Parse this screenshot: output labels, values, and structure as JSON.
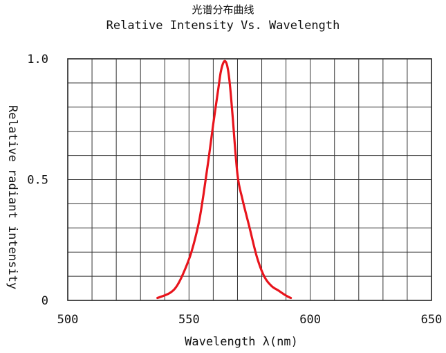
{
  "chart_data": {
    "type": "line",
    "title": "光谱分布曲线",
    "subtitle": "Relative Intensity Vs. Wavelength",
    "xlabel": "Wavelength λ(nm)",
    "ylabel": "Relative radiant intensity",
    "xlim": [
      500,
      650
    ],
    "ylim": [
      0,
      1.0
    ],
    "x_ticks": [
      "500",
      "550",
      "600",
      "650"
    ],
    "y_ticks": [
      "0",
      "0.5",
      "1.0"
    ],
    "grid": true,
    "series": [
      {
        "color": "#e8141c",
        "x": [
          537,
          542,
          545,
          548,
          551,
          554,
          556,
          558,
          560,
          562,
          563,
          564,
          565,
          566,
          567,
          568,
          570,
          572,
          575,
          578,
          581,
          584,
          587,
          590,
          592
        ],
        "y": [
          0.01,
          0.03,
          0.06,
          0.12,
          0.2,
          0.32,
          0.44,
          0.58,
          0.73,
          0.87,
          0.94,
          0.98,
          0.99,
          0.96,
          0.88,
          0.76,
          0.52,
          0.42,
          0.3,
          0.18,
          0.1,
          0.06,
          0.04,
          0.02,
          0.01
        ]
      }
    ]
  }
}
